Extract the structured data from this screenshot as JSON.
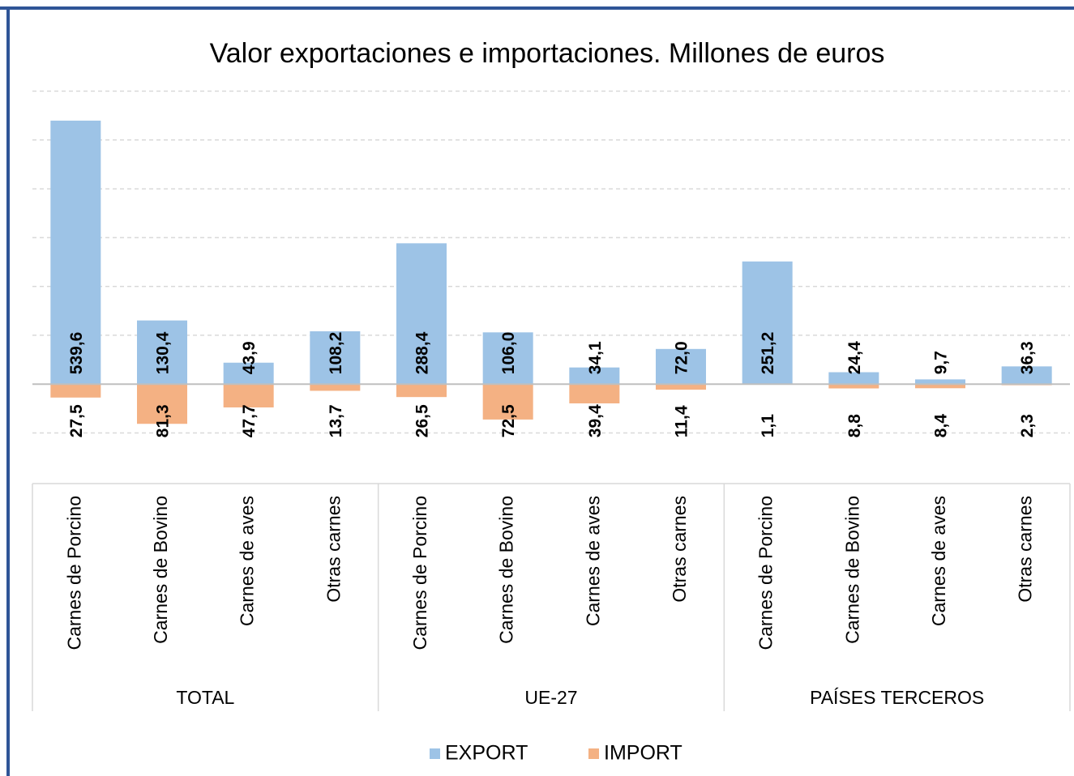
{
  "chart_data": {
    "type": "bar",
    "title": "Valor exportaciones e importaciones. Millones de euros",
    "groups": [
      "TOTAL",
      "UE-27",
      "PAÍSES TERCEROS"
    ],
    "categories": [
      "Carnes de Porcino",
      "Carnes de Bovino",
      "Carnes de aves",
      "Otras carnes",
      "Carnes de Porcino",
      "Carnes de Bovino",
      "Carnes de aves",
      "Otras carnes",
      "Carnes de Porcino",
      "Carnes de Bovino",
      "Carnes de aves",
      "Otras carnes"
    ],
    "series": [
      {
        "name": "EXPORT",
        "color": "#9dc3e6",
        "values": [
          539.6,
          130.4,
          43.9,
          108.2,
          288.4,
          106.0,
          34.1,
          72.0,
          251.2,
          24.4,
          9.7,
          36.3
        ],
        "value_labels": [
          "539,6",
          "130,4",
          "43,9",
          "108,2",
          "288,4",
          "106,0",
          "34,1",
          "72,0",
          "251,2",
          "24,4",
          "9,7",
          "36,3"
        ]
      },
      {
        "name": "IMPORT",
        "color": "#f4b183",
        "values": [
          -27.5,
          -81.3,
          -47.7,
          -13.7,
          -26.5,
          -72.5,
          -39.4,
          -11.4,
          -1.1,
          -8.8,
          -8.4,
          -2.3
        ],
        "value_labels": [
          "27,5",
          "81,3",
          "47,7",
          "13,7",
          "26,5",
          "72,5",
          "39,4",
          "11,4",
          "1,1",
          "8,8",
          "8,4",
          "2,3"
        ]
      }
    ],
    "ylim": [
      -100,
      600
    ],
    "yticks": [
      -100,
      0,
      100,
      200,
      300,
      400,
      500,
      600
    ],
    "grid": true,
    "legend": "bottom"
  }
}
